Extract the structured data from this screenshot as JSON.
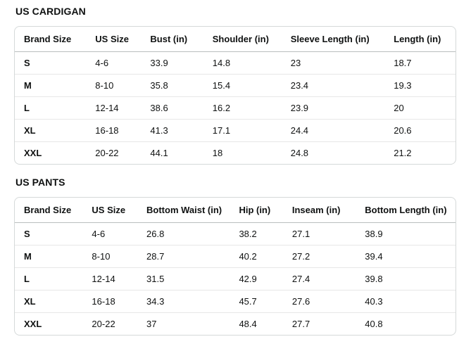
{
  "colors": {
    "text": "#0f1111",
    "table_border": "#d5d9d9",
    "header_divider": "#b9bebe",
    "row_divider": "#e7e7e7",
    "background": "#ffffff"
  },
  "sections": [
    {
      "title": "US CARDIGAN",
      "table": {
        "columns": [
          "Brand Size",
          "US Size",
          "Bust (in)",
          "Shoulder (in)",
          "Sleeve Length (in)",
          "Length (in)"
        ],
        "rows": [
          [
            "S",
            "4-6",
            "33.9",
            "14.8",
            "23",
            "18.7"
          ],
          [
            "M",
            "8-10",
            "35.8",
            "15.4",
            "23.4",
            "19.3"
          ],
          [
            "L",
            "12-14",
            "38.6",
            "16.2",
            "23.9",
            "20"
          ],
          [
            "XL",
            "16-18",
            "41.3",
            "17.1",
            "24.4",
            "20.6"
          ],
          [
            "XXL",
            "20-22",
            "44.1",
            "18",
            "24.8",
            "21.2"
          ]
        ]
      }
    },
    {
      "title": "US PANTS",
      "table": {
        "columns": [
          "Brand Size",
          "US Size",
          "Bottom Waist (in)",
          "Hip (in)",
          "Inseam (in)",
          "Bottom Length (in)"
        ],
        "rows": [
          [
            "S",
            "4-6",
            "26.8",
            "38.2",
            "27.1",
            "38.9"
          ],
          [
            "M",
            "8-10",
            "28.7",
            "40.2",
            "27.2",
            "39.4"
          ],
          [
            "L",
            "12-14",
            "31.5",
            "42.9",
            "27.4",
            "39.8"
          ],
          [
            "XL",
            "16-18",
            "34.3",
            "45.7",
            "27.6",
            "40.3"
          ],
          [
            "XXL",
            "20-22",
            "37",
            "48.4",
            "27.7",
            "40.8"
          ]
        ]
      }
    }
  ]
}
